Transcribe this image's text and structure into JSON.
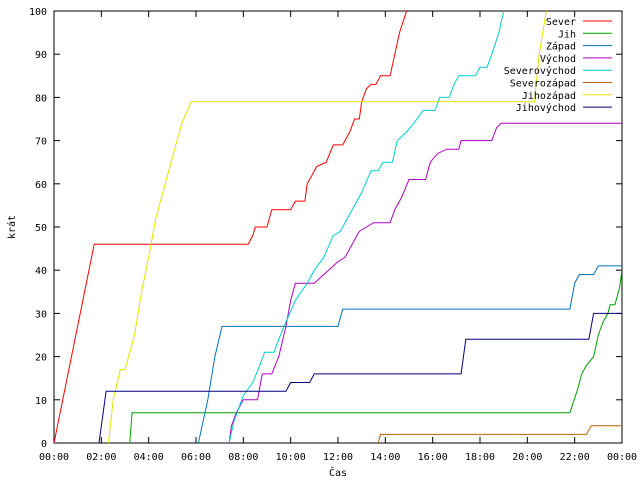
{
  "chart_data": {
    "type": "line",
    "title": "",
    "xlabel": "Čas",
    "ylabel": "krát",
    "xlim": [
      0,
      24
    ],
    "ylim": [
      0,
      100
    ],
    "x_ticks": [
      "00:00",
      "02:00",
      "04:00",
      "06:00",
      "08:00",
      "10:00",
      "12:00",
      "14:00",
      "16:00",
      "18:00",
      "20:00",
      "22:00",
      "00:00"
    ],
    "y_ticks": [
      "0",
      "10",
      "20",
      "30",
      "40",
      "50",
      "60",
      "70",
      "80",
      "90",
      "100"
    ],
    "grid": false,
    "legend_position": "top-right",
    "series": [
      {
        "name": "Sever",
        "color": "#ff0000",
        "points": [
          [
            0,
            0
          ],
          [
            1.7,
            46
          ],
          [
            8.2,
            46
          ],
          [
            8.4,
            48
          ],
          [
            8.5,
            50
          ],
          [
            9.0,
            50
          ],
          [
            9.2,
            54
          ],
          [
            10.0,
            54
          ],
          [
            10.2,
            56
          ],
          [
            10.6,
            56
          ],
          [
            10.7,
            60
          ],
          [
            10.9,
            62
          ],
          [
            11.1,
            64
          ],
          [
            11.5,
            65
          ],
          [
            11.8,
            69
          ],
          [
            12.2,
            69
          ],
          [
            12.5,
            72
          ],
          [
            12.7,
            75
          ],
          [
            12.9,
            75
          ],
          [
            13.0,
            79
          ],
          [
            13.2,
            82
          ],
          [
            13.4,
            83
          ],
          [
            13.6,
            83
          ],
          [
            13.8,
            85
          ],
          [
            14.2,
            85
          ],
          [
            14.4,
            90
          ],
          [
            14.6,
            95
          ],
          [
            14.9,
            100
          ]
        ]
      },
      {
        "name": "Jih",
        "color": "#00a000",
        "points": [
          [
            3.2,
            0
          ],
          [
            3.3,
            7
          ],
          [
            21.8,
            7
          ],
          [
            22.1,
            12
          ],
          [
            22.3,
            16
          ],
          [
            22.5,
            18
          ],
          [
            22.8,
            20
          ],
          [
            23.0,
            25
          ],
          [
            23.2,
            28
          ],
          [
            23.4,
            30
          ],
          [
            23.5,
            32
          ],
          [
            23.7,
            32
          ],
          [
            23.9,
            36
          ],
          [
            24.0,
            40
          ]
        ]
      },
      {
        "name": "Západ",
        "color": "#0070c0",
        "points": [
          [
            6.1,
            0
          ],
          [
            6.5,
            10
          ],
          [
            6.8,
            20
          ],
          [
            7.1,
            27
          ],
          [
            12.0,
            27
          ],
          [
            12.2,
            31
          ],
          [
            21.8,
            31
          ],
          [
            22.0,
            37
          ],
          [
            22.2,
            39
          ],
          [
            22.8,
            39
          ],
          [
            23.0,
            41
          ],
          [
            24.0,
            41
          ]
        ]
      },
      {
        "name": "Východ",
        "color": "#b000c0",
        "points": [
          [
            7.4,
            0
          ],
          [
            7.5,
            4
          ],
          [
            7.7,
            7
          ],
          [
            8.0,
            10
          ],
          [
            8.6,
            10
          ],
          [
            8.8,
            16
          ],
          [
            9.2,
            16
          ],
          [
            9.5,
            20
          ],
          [
            9.8,
            27
          ],
          [
            10.0,
            33
          ],
          [
            10.2,
            37
          ],
          [
            11.0,
            37
          ],
          [
            11.2,
            38
          ],
          [
            11.6,
            40
          ],
          [
            12.0,
            42
          ],
          [
            12.3,
            43
          ],
          [
            12.6,
            46
          ],
          [
            12.9,
            49
          ],
          [
            13.2,
            50
          ],
          [
            13.5,
            51
          ],
          [
            14.2,
            51
          ],
          [
            14.4,
            54
          ],
          [
            14.7,
            57
          ],
          [
            15.0,
            61
          ],
          [
            15.7,
            61
          ],
          [
            15.9,
            65
          ],
          [
            16.2,
            67
          ],
          [
            16.6,
            68
          ],
          [
            17.1,
            68
          ],
          [
            17.2,
            70
          ],
          [
            18.5,
            70
          ],
          [
            18.7,
            73
          ],
          [
            18.9,
            74
          ],
          [
            24.0,
            74
          ]
        ]
      },
      {
        "name": "Severovýchod",
        "color": "#00d0d0",
        "points": [
          [
            7.4,
            0
          ],
          [
            7.6,
            5
          ],
          [
            8.0,
            11
          ],
          [
            8.4,
            14
          ],
          [
            8.7,
            18
          ],
          [
            8.9,
            21
          ],
          [
            9.3,
            21
          ],
          [
            9.5,
            24
          ],
          [
            9.8,
            28
          ],
          [
            10.2,
            33
          ],
          [
            10.7,
            37
          ],
          [
            11.0,
            40
          ],
          [
            11.4,
            43
          ],
          [
            11.8,
            48
          ],
          [
            12.1,
            49
          ],
          [
            12.4,
            52
          ],
          [
            12.7,
            55
          ],
          [
            13.0,
            58
          ],
          [
            13.4,
            63
          ],
          [
            13.7,
            63
          ],
          [
            13.9,
            65
          ],
          [
            14.3,
            65
          ],
          [
            14.5,
            70
          ],
          [
            14.9,
            72
          ],
          [
            15.2,
            74
          ],
          [
            15.6,
            77
          ],
          [
            16.1,
            77
          ],
          [
            16.3,
            80
          ],
          [
            16.7,
            80
          ],
          [
            16.9,
            83
          ],
          [
            17.1,
            85
          ],
          [
            17.8,
            85
          ],
          [
            18.0,
            87
          ],
          [
            18.3,
            87
          ],
          [
            18.5,
            90
          ],
          [
            18.8,
            95
          ],
          [
            19.0,
            100
          ]
        ]
      },
      {
        "name": "Severozápad",
        "color": "#c06000",
        "points": [
          [
            13.7,
            0
          ],
          [
            13.8,
            2
          ],
          [
            22.5,
            2
          ],
          [
            22.7,
            4
          ],
          [
            24.0,
            4
          ]
        ]
      },
      {
        "name": "Jihozápad",
        "color": "#e8e000",
        "points": [
          [
            2.3,
            0
          ],
          [
            2.5,
            10
          ],
          [
            2.8,
            17
          ],
          [
            3.0,
            17
          ],
          [
            3.4,
            25
          ],
          [
            3.7,
            35
          ],
          [
            4.0,
            43
          ],
          [
            4.3,
            52
          ],
          [
            4.6,
            58
          ],
          [
            5.0,
            66
          ],
          [
            5.4,
            74
          ],
          [
            5.8,
            79
          ],
          [
            20.3,
            79
          ],
          [
            20.5,
            90
          ],
          [
            20.8,
            100
          ]
        ]
      },
      {
        "name": "Jihovýchod",
        "color": "#000080",
        "points": [
          [
            1.9,
            0
          ],
          [
            2.2,
            12
          ],
          [
            9.8,
            12
          ],
          [
            10.0,
            14
          ],
          [
            10.8,
            14
          ],
          [
            11.0,
            16
          ],
          [
            17.2,
            16
          ],
          [
            17.4,
            24
          ],
          [
            22.6,
            24
          ],
          [
            22.8,
            30
          ],
          [
            24.0,
            30
          ]
        ]
      }
    ]
  }
}
